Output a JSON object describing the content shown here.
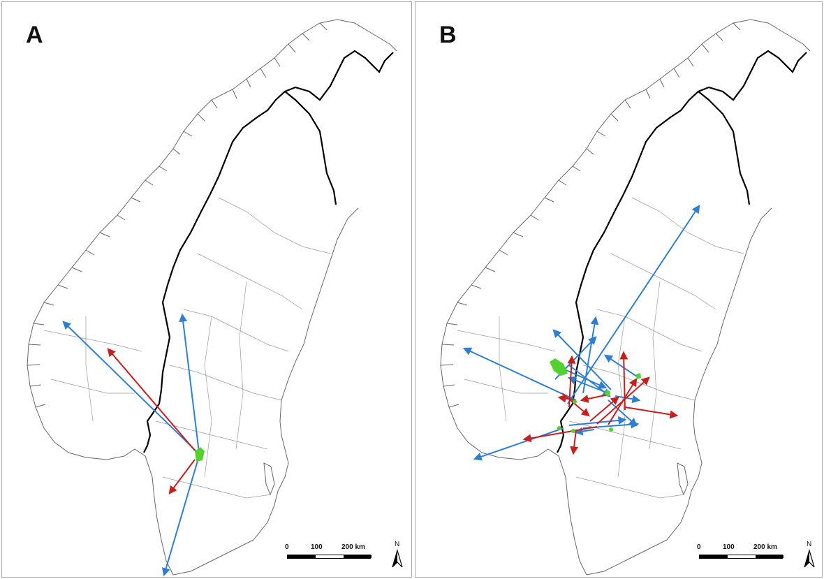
{
  "panels": [
    {
      "label": "A",
      "scale": {
        "ticks": [
          "0",
          "100",
          "200 km"
        ]
      },
      "north_label": "N",
      "arrows_blue": 3,
      "arrows_red": 2
    },
    {
      "label": "B",
      "scale": {
        "ticks": [
          "0",
          "100",
          "200 km"
        ]
      },
      "north_label": "N"
    }
  ],
  "colors": {
    "movement_blue": "#2f7fd0",
    "movement_red": "#c81e1e",
    "origin_green": "#52d12f",
    "border_black": "#000000",
    "admin_grey": "#8c8c8c",
    "coast_grey": "#666666"
  },
  "icons": {
    "north_arrow": "north-arrow-icon"
  }
}
